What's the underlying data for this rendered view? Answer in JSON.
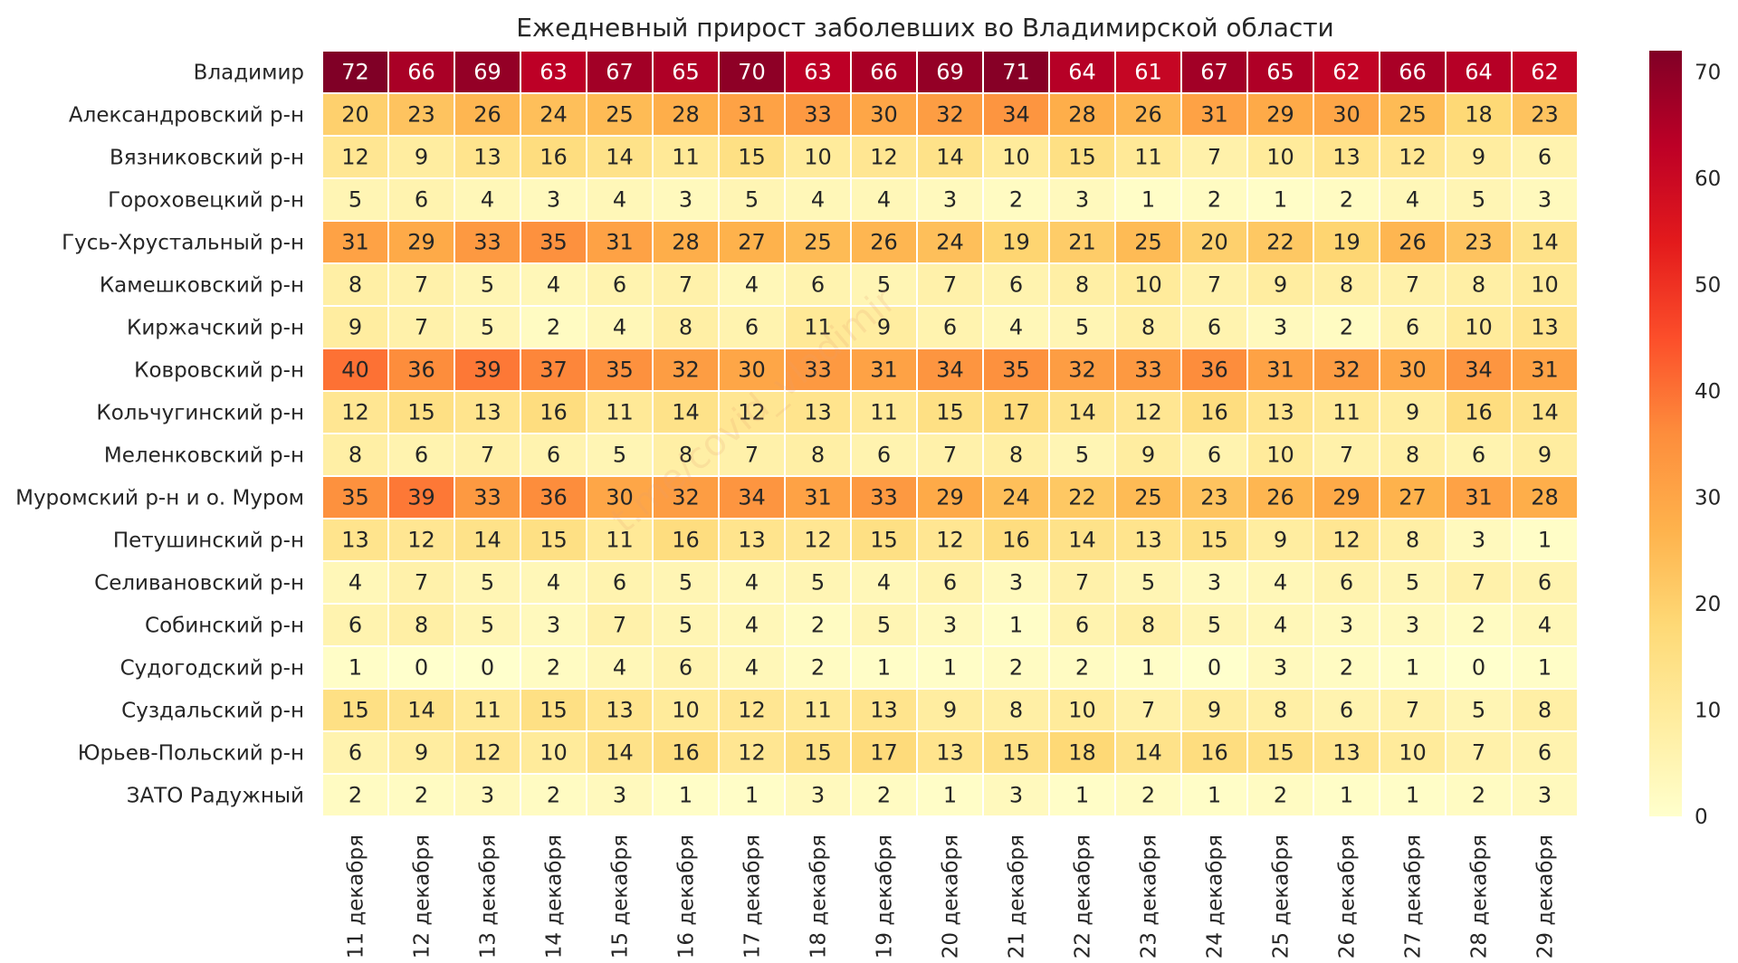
{
  "chart_data": {
    "type": "heatmap",
    "title": "Ежедневный прирост заболевших во Владимирской области",
    "watermark": "t.me/covid_vladimir",
    "rows": [
      "Владимир",
      "Александровский р-н",
      "Вязниковский р-н",
      "Гороховецкий р-н",
      "Гусь-Хрустальный р-н",
      "Камешковский р-н",
      "Киржачский р-н",
      "Ковровский р-н",
      "Кольчугинский р-н",
      "Меленковский р-н",
      "Муромский р-н и о. Муром",
      "Петушинский р-н",
      "Селивановский р-н",
      "Собинский р-н",
      "Судогодский р-н",
      "Суздальский р-н",
      "Юрьев-Польский р-н",
      "ЗАТО Радужный"
    ],
    "columns": [
      "11 декабря",
      "12 декабря",
      "13 декабря",
      "14 декабря",
      "15 декабря",
      "16 декабря",
      "17 декабря",
      "18 декабря",
      "19 декабря",
      "20 декабря",
      "21 декабря",
      "22 декабря",
      "23 декабря",
      "24 декабря",
      "25 декабря",
      "26 декабря",
      "27 декабря",
      "28 декабря",
      "29 декабря"
    ],
    "values": [
      [
        72,
        66,
        69,
        63,
        67,
        65,
        70,
        63,
        66,
        69,
        71,
        64,
        61,
        67,
        65,
        62,
        66,
        64,
        62
      ],
      [
        20,
        23,
        26,
        24,
        25,
        28,
        31,
        33,
        30,
        32,
        34,
        28,
        26,
        31,
        29,
        30,
        25,
        18,
        23
      ],
      [
        12,
        9,
        13,
        16,
        14,
        11,
        15,
        10,
        12,
        14,
        10,
        15,
        11,
        7,
        10,
        13,
        12,
        9,
        6
      ],
      [
        5,
        6,
        4,
        3,
        4,
        3,
        5,
        4,
        4,
        3,
        2,
        3,
        1,
        2,
        1,
        2,
        4,
        5,
        3
      ],
      [
        31,
        29,
        33,
        35,
        31,
        28,
        27,
        25,
        26,
        24,
        19,
        21,
        25,
        20,
        22,
        19,
        26,
        23,
        14
      ],
      [
        8,
        7,
        5,
        4,
        6,
        7,
        4,
        6,
        5,
        7,
        6,
        8,
        10,
        7,
        9,
        8,
        7,
        8,
        10
      ],
      [
        9,
        7,
        5,
        2,
        4,
        8,
        6,
        11,
        9,
        6,
        4,
        5,
        8,
        6,
        3,
        2,
        6,
        10,
        13
      ],
      [
        40,
        36,
        39,
        37,
        35,
        32,
        30,
        33,
        31,
        34,
        35,
        32,
        33,
        36,
        31,
        32,
        30,
        34,
        31
      ],
      [
        12,
        15,
        13,
        16,
        11,
        14,
        12,
        13,
        11,
        15,
        17,
        14,
        12,
        16,
        13,
        11,
        9,
        16,
        14
      ],
      [
        8,
        6,
        7,
        6,
        5,
        8,
        7,
        8,
        6,
        7,
        8,
        5,
        9,
        6,
        10,
        7,
        8,
        6,
        9
      ],
      [
        35,
        39,
        33,
        36,
        30,
        32,
        34,
        31,
        33,
        29,
        24,
        22,
        25,
        23,
        26,
        29,
        27,
        31,
        28
      ],
      [
        13,
        12,
        14,
        15,
        11,
        16,
        13,
        12,
        15,
        12,
        16,
        14,
        13,
        15,
        9,
        12,
        8,
        3,
        1
      ],
      [
        4,
        7,
        5,
        4,
        6,
        5,
        4,
        5,
        4,
        6,
        3,
        7,
        5,
        3,
        4,
        6,
        5,
        7,
        6
      ],
      [
        6,
        8,
        5,
        3,
        7,
        5,
        4,
        2,
        5,
        3,
        1,
        6,
        8,
        5,
        4,
        3,
        3,
        2,
        4
      ],
      [
        1,
        0,
        0,
        2,
        4,
        6,
        4,
        2,
        1,
        1,
        2,
        2,
        1,
        0,
        3,
        2,
        1,
        0,
        1
      ],
      [
        15,
        14,
        11,
        15,
        13,
        10,
        12,
        11,
        13,
        9,
        8,
        10,
        7,
        9,
        8,
        6,
        7,
        5,
        8
      ],
      [
        6,
        9,
        12,
        10,
        14,
        16,
        12,
        15,
        17,
        13,
        15,
        18,
        14,
        16,
        15,
        13,
        10,
        7,
        6
      ],
      [
        2,
        2,
        3,
        2,
        3,
        1,
        1,
        3,
        2,
        1,
        3,
        1,
        2,
        1,
        2,
        1,
        1,
        2,
        3
      ]
    ],
    "vmin": 0,
    "vmax": 72,
    "colormap": "YlOrRd",
    "colorbar_ticks": [
      0,
      10,
      20,
      30,
      40,
      50,
      60,
      70
    ],
    "colors": {
      "text_dark": "#262626",
      "text_light": "#ffffff",
      "cell_border": "#ffffff"
    }
  }
}
